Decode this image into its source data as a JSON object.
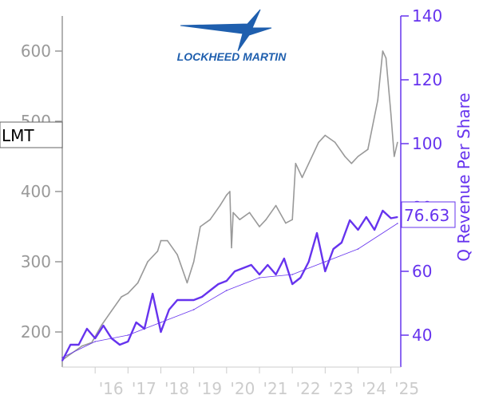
{
  "chart_data": {
    "type": "line",
    "ticker": "LMT",
    "logo_text": "LOCKHEED MARTIN",
    "last_revenue_label": "76.63",
    "colors": {
      "price": "#999999",
      "revenue": "#6633ee",
      "trend": "#6633ee",
      "left_axis": "#999999",
      "right_axis": "#6633ee",
      "logo": "#1f5fae"
    },
    "xlim": [
      2015.0,
      2025.3
    ],
    "x_ticks": [
      {
        "value": 2016,
        "label": "'16"
      },
      {
        "value": 2017,
        "label": "'17"
      },
      {
        "value": 2018,
        "label": "'18"
      },
      {
        "value": 2019,
        "label": "'19"
      },
      {
        "value": 2020,
        "label": "'20"
      },
      {
        "value": 2021,
        "label": "'21"
      },
      {
        "value": 2022,
        "label": "'22"
      },
      {
        "value": 2023,
        "label": "'23"
      },
      {
        "value": 2024,
        "label": "'24"
      },
      {
        "value": 2025,
        "label": "'25"
      }
    ],
    "left_axis": {
      "ylim": [
        150,
        650
      ],
      "ticks": [
        200,
        300,
        400,
        500,
        600
      ]
    },
    "right_axis": {
      "label": "Q Revenue Per Share",
      "ylim": [
        30,
        140
      ],
      "ticks": [
        40,
        60,
        80,
        100,
        120,
        140
      ]
    },
    "series": [
      {
        "axis": "left",
        "x": [
          2015.0,
          2015.3,
          2015.6,
          2015.9,
          2016.2,
          2016.5,
          2016.8,
          2017.0,
          2017.3,
          2017.6,
          2017.9,
          2018.0,
          2018.2,
          2018.5,
          2018.8,
          2019.0,
          2019.2,
          2019.5,
          2019.8,
          2020.0,
          2020.1,
          2020.15,
          2020.2,
          2020.4,
          2020.7,
          2021.0,
          2021.2,
          2021.5,
          2021.8,
          2022.0,
          2022.1,
          2022.3,
          2022.5,
          2022.8,
          2023.0,
          2023.3,
          2023.6,
          2023.8,
          2024.0,
          2024.3,
          2024.6,
          2024.75,
          2024.85,
          2025.0,
          2025.1,
          2025.2
        ],
        "values": [
          160,
          170,
          180,
          185,
          210,
          230,
          250,
          255,
          270,
          300,
          315,
          330,
          330,
          310,
          270,
          300,
          350,
          360,
          380,
          395,
          400,
          320,
          370,
          360,
          370,
          350,
          360,
          380,
          355,
          360,
          440,
          420,
          440,
          470,
          480,
          470,
          450,
          440,
          450,
          460,
          530,
          600,
          590,
          510,
          450,
          470
        ]
      },
      {
        "axis": "right",
        "x": [
          2015.0,
          2015.25,
          2015.5,
          2015.75,
          2016.0,
          2016.25,
          2016.5,
          2016.75,
          2017.0,
          2017.25,
          2017.5,
          2017.75,
          2018.0,
          2018.25,
          2018.5,
          2018.75,
          2019.0,
          2019.25,
          2019.5,
          2019.75,
          2020.0,
          2020.25,
          2020.5,
          2020.75,
          2021.0,
          2021.25,
          2021.5,
          2021.75,
          2022.0,
          2022.25,
          2022.5,
          2022.75,
          2023.0,
          2023.25,
          2023.5,
          2023.75,
          2024.0,
          2024.25,
          2024.5,
          2024.75,
          2025.0,
          2025.2
        ],
        "values": [
          32,
          37,
          37,
          42,
          39,
          43,
          39,
          37,
          38,
          44,
          42,
          53,
          41,
          48,
          51,
          51,
          51,
          52,
          54,
          56,
          57,
          60,
          61,
          62,
          59,
          62,
          59,
          64,
          56,
          58,
          63,
          72,
          60,
          67,
          69,
          76,
          73,
          77,
          73,
          79,
          76.63,
          77
        ]
      },
      {
        "axis": "right",
        "x": [
          2015.0,
          2016.0,
          2017.0,
          2018.0,
          2019.0,
          2020.0,
          2021.0,
          2022.0,
          2023.0,
          2024.0,
          2025.2
        ],
        "values": [
          33,
          38,
          40,
          44,
          48,
          54,
          58,
          59,
          63,
          67,
          75
        ]
      }
    ]
  }
}
